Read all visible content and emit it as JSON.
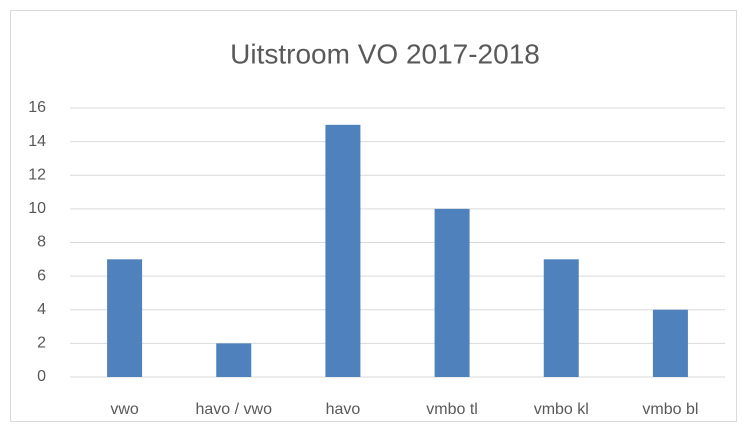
{
  "chart_data": {
    "type": "bar",
    "title": "Uitstroom VO 2017-2018",
    "categories": [
      "vwo",
      "havo / vwo",
      "havo",
      "vmbo tl",
      "vmbo kl",
      "vmbo bl"
    ],
    "values": [
      7,
      2,
      15,
      10,
      7,
      4
    ],
    "color": "#4f81bd",
    "ylim": [
      0,
      16
    ],
    "yticks": [
      0,
      2,
      4,
      6,
      8,
      10,
      12,
      14,
      16
    ],
    "grid": true
  }
}
